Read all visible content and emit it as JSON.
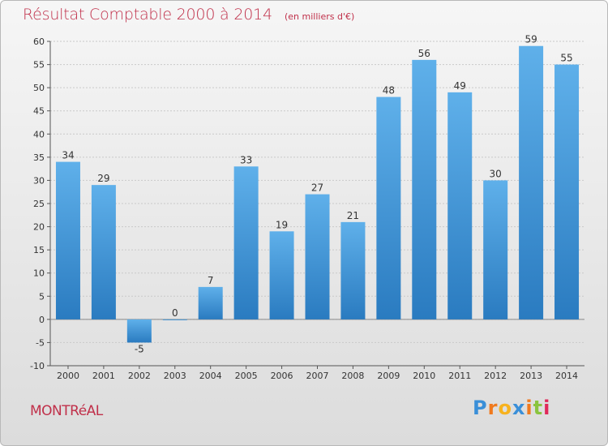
{
  "title": "Résultat Comptable 2000 à 2014",
  "subtitle": "(en milliers d'€)",
  "commune": "MONTRéAL",
  "logo": {
    "letters": [
      "P",
      "r",
      "o",
      "x",
      "i",
      "t",
      "i"
    ],
    "colors": [
      "#3a8fd8",
      "#f07a1e",
      "#f7b21e",
      "#3a8fd8",
      "#f07a1e",
      "#8ac43f",
      "#e02a5a"
    ]
  },
  "colors": {
    "accent": "#c0304a",
    "bar": "#3b91d6"
  },
  "chart_data": {
    "type": "bar",
    "categories": [
      "2000",
      "2001",
      "2002",
      "2003",
      "2004",
      "2005",
      "2006",
      "2007",
      "2008",
      "2009",
      "2010",
      "2011",
      "2012",
      "2013",
      "2014"
    ],
    "values": [
      34,
      29,
      -5,
      0,
      7,
      33,
      19,
      27,
      21,
      48,
      56,
      49,
      30,
      59,
      55
    ],
    "ylim": [
      -10,
      60
    ],
    "yticks": [
      -10,
      -5,
      0,
      5,
      10,
      15,
      20,
      25,
      30,
      35,
      40,
      45,
      50,
      55,
      60
    ],
    "grid": true
  }
}
